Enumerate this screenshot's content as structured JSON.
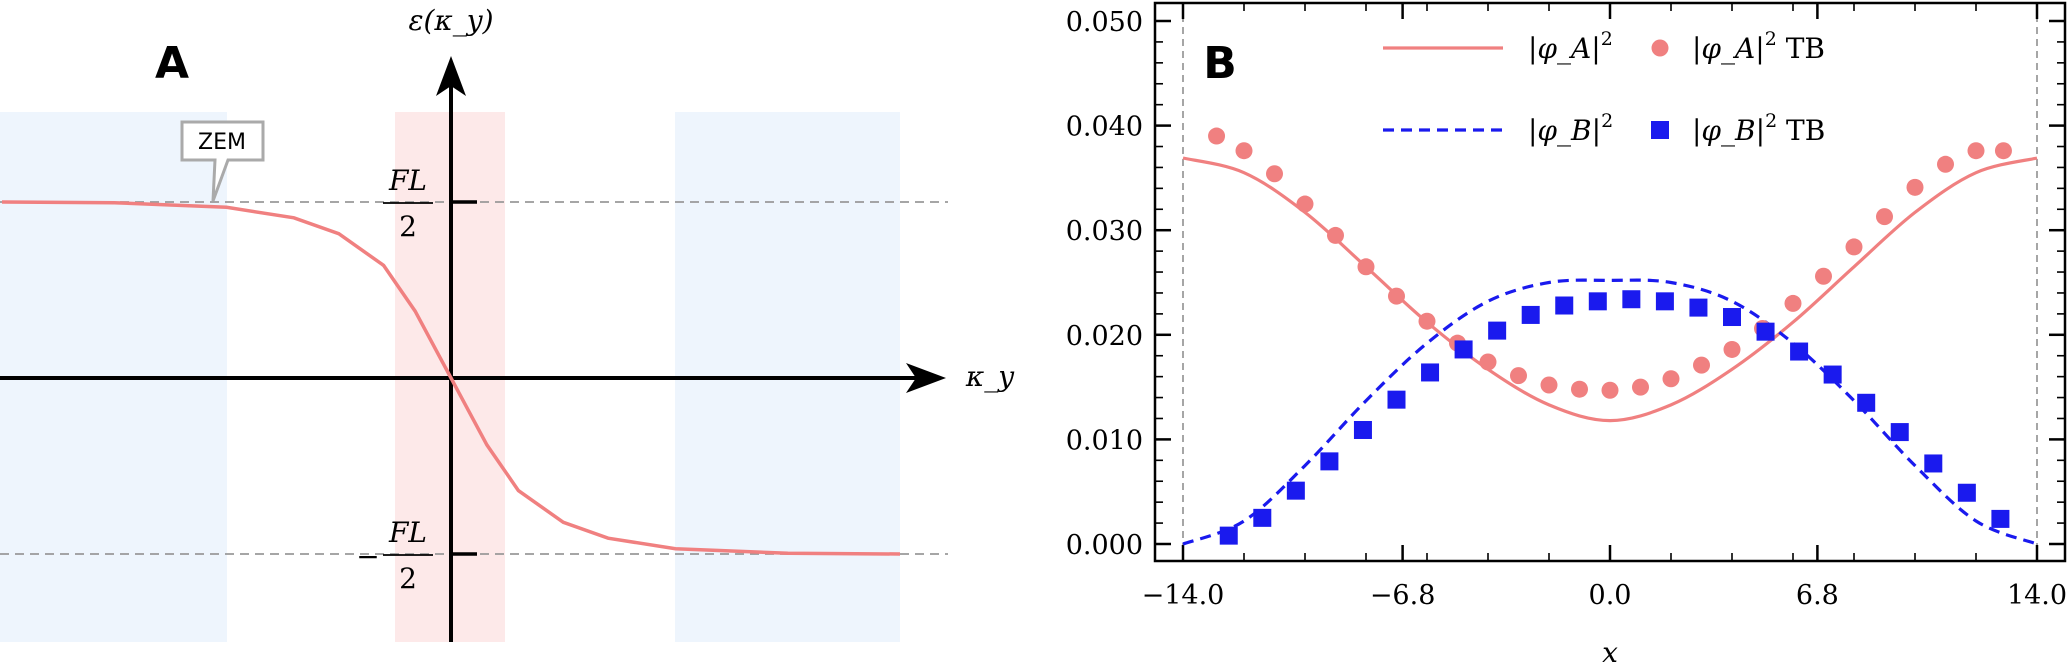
{
  "panel_a": {
    "letter": "A",
    "y_axis_label": "ε(κ_y)",
    "x_axis_label": "κ_y",
    "top_tick_num": "FL",
    "top_tick_den": "2",
    "bottom_tick_sign": "−",
    "bottom_tick_num": "FL",
    "bottom_tick_den": "2",
    "callout": "ZEM",
    "colors": {
      "curve": "#f08080",
      "blue_band": "#eef5fd",
      "red_band": "#fde9e9",
      "dashed": "#999999"
    }
  },
  "chart_data": [
    {
      "panel": "A",
      "type": "line",
      "xlabel": "κ_y",
      "ylabel": "ε(κ_y)",
      "yticks": [
        "FL/2",
        "−FL/2"
      ],
      "series": [
        {
          "color": "#f08080",
          "shape": "tanh step decreasing from FL/2 to −FL/2 through origin",
          "x": [
            -1.0,
            -0.75,
            -0.5,
            -0.35,
            -0.25,
            -0.15,
            -0.08,
            0.0,
            0.08,
            0.15,
            0.25,
            0.35,
            0.5,
            0.75,
            1.0
          ],
          "y": [
            0.5,
            0.498,
            0.485,
            0.455,
            0.41,
            0.32,
            0.19,
            0.0,
            -0.19,
            -0.32,
            -0.41,
            -0.455,
            -0.485,
            -0.498,
            -0.5
          ]
        }
      ],
      "annotations": [
        "ZEM"
      ]
    },
    {
      "panel": "B",
      "type": "line",
      "xlabel": "x",
      "xlim": [
        -14.0,
        14.0
      ],
      "ylim": [
        0.0,
        0.05
      ],
      "xticks": [
        "−14.0",
        "−6.8",
        "0.0",
        "6.8",
        "14.0"
      ],
      "yticks": [
        "0.000",
        "0.010",
        "0.020",
        "0.030",
        "0.040",
        "0.050"
      ],
      "legend_position": "top",
      "legend": [
        {
          "label_main": "|φ_A|",
          "label_sup": "2",
          "label_tail": "",
          "style": "solid-line",
          "color": "#f08080"
        },
        {
          "label_main": "|φ_A|",
          "label_sup": "2",
          "label_tail": " TB",
          "style": "circle-marker",
          "color": "#f08080"
        },
        {
          "label_main": "|φ_B|",
          "label_sup": "2",
          "label_tail": "",
          "style": "dashed-line",
          "color": "#1a1aee"
        },
        {
          "label_main": "|φ_B|",
          "label_sup": "2",
          "label_tail": " TB",
          "style": "square-marker",
          "color": "#1a1aee"
        }
      ],
      "series": [
        {
          "name": "|φ_A|^2",
          "style": "solid",
          "color": "#f08080",
          "x": [
            -14.0,
            -12.0,
            -10.0,
            -8.0,
            -6.0,
            -4.0,
            -2.0,
            0.0,
            2.0,
            4.0,
            6.0,
            8.0,
            10.0,
            12.0,
            14.0
          ],
          "y": [
            0.0369,
            0.0355,
            0.0317,
            0.0265,
            0.0212,
            0.0167,
            0.0133,
            0.0118,
            0.0133,
            0.0167,
            0.0212,
            0.0265,
            0.0317,
            0.0355,
            0.0369
          ]
        },
        {
          "name": "|φ_B|^2",
          "style": "dashed",
          "color": "#1a1aee",
          "x": [
            -14.0,
            -12.0,
            -10.0,
            -8.0,
            -6.0,
            -4.0,
            -2.0,
            0.0,
            2.0,
            4.0,
            6.0,
            8.0,
            10.0,
            12.0,
            14.0
          ],
          "y": [
            0.0,
            0.0022,
            0.0075,
            0.0137,
            0.0192,
            0.0232,
            0.025,
            0.0252,
            0.025,
            0.0232,
            0.0192,
            0.0137,
            0.0075,
            0.0022,
            0.0
          ]
        },
        {
          "name": "|φ_A|^2 TB",
          "style": "circle-markers",
          "color": "#f08080",
          "x": [
            -12.9,
            -12.0,
            -11.0,
            -10.0,
            -9.0,
            -8.0,
            -7.0,
            -6.0,
            -5.0,
            -4.0,
            -3.0,
            -2.0,
            -1.0,
            0.0,
            1.0,
            2.0,
            3.0,
            4.0,
            5.0,
            6.0,
            7.0,
            8.0,
            9.0,
            10.0,
            11.0,
            12.0,
            12.9
          ],
          "y": [
            0.039,
            0.0376,
            0.0354,
            0.0325,
            0.0295,
            0.0265,
            0.0237,
            0.0213,
            0.0192,
            0.0174,
            0.0161,
            0.0152,
            0.0148,
            0.0147,
            0.015,
            0.0158,
            0.0171,
            0.0186,
            0.0206,
            0.023,
            0.0256,
            0.0284,
            0.0313,
            0.0341,
            0.0363,
            0.0376,
            0.0376
          ]
        },
        {
          "name": "|φ_B|^2 TB",
          "style": "square-markers",
          "color": "#1a1aee",
          "x": [
            -12.5,
            -11.4,
            -10.3,
            -9.2,
            -8.1,
            -7.0,
            -5.9,
            -4.8,
            -3.7,
            -2.6,
            -1.5,
            -0.4,
            0.7,
            1.8,
            2.9,
            4.0,
            5.1,
            6.2,
            7.3,
            8.4,
            9.5,
            10.6,
            11.7,
            12.8
          ],
          "y": [
            0.0008,
            0.0025,
            0.0051,
            0.0079,
            0.0109,
            0.0138,
            0.0164,
            0.0186,
            0.0204,
            0.0219,
            0.0228,
            0.0232,
            0.0234,
            0.0232,
            0.0226,
            0.0217,
            0.0203,
            0.0184,
            0.0162,
            0.0135,
            0.0107,
            0.0077,
            0.0049,
            0.0024
          ]
        }
      ]
    }
  ],
  "panel_b": {
    "letter": "B",
    "xlabel": "x",
    "colors": {
      "red": "#f08080",
      "blue": "#1a1aee",
      "axis": "#000000",
      "boundary_dash": "#888888"
    }
  }
}
